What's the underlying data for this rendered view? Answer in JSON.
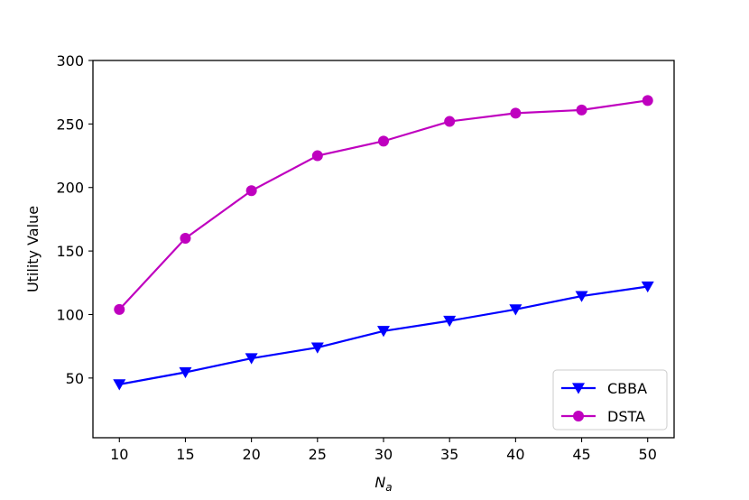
{
  "chart_data": {
    "type": "line",
    "xlabel": "N",
    "xlabel_subscript": "a",
    "ylabel": "Utility Value",
    "x": [
      10,
      15,
      20,
      25,
      30,
      35,
      40,
      45,
      50
    ],
    "xlim": [
      8,
      52
    ],
    "ylim": [
      3,
      300
    ],
    "xticks": [
      10,
      15,
      20,
      25,
      30,
      35,
      40,
      45,
      50
    ],
    "yticks": [
      50,
      100,
      150,
      200,
      250,
      300
    ],
    "grid": false,
    "legend_position": "lower-right",
    "series": [
      {
        "name": "CBBA",
        "color": "#0000ff",
        "marker": "triangle-down",
        "values": [
          45,
          54.5,
          65.5,
          74,
          87,
          95,
          104,
          114.5,
          122
        ]
      },
      {
        "name": "DSTA",
        "color": "#bf00bf",
        "marker": "circle",
        "values": [
          104,
          160,
          197.5,
          225,
          236.5,
          252,
          258.5,
          261,
          268.5
        ]
      }
    ]
  }
}
